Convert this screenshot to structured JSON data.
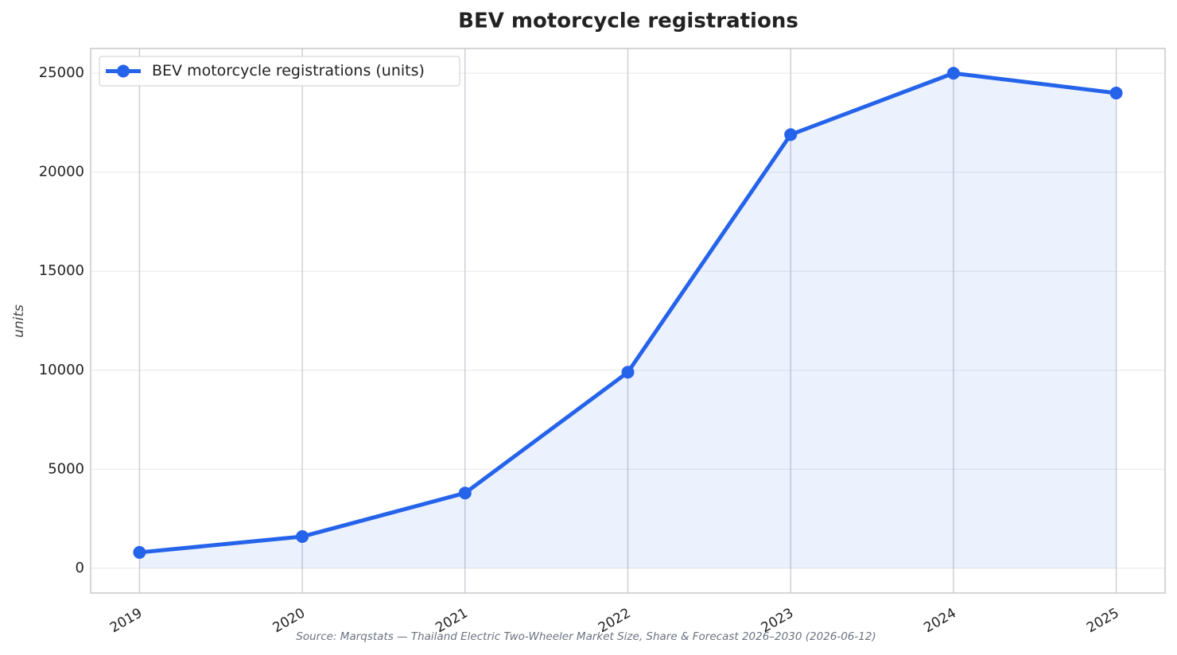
{
  "chart_data": {
    "type": "line",
    "title": "BEV motorcycle registrations",
    "y_label": "units",
    "source": "Source: Marqstats — Thailand Electric Two-Wheeler Market Size, Share & Forecast 2026–2030 (2026-06-12)",
    "x": [
      2019,
      2020,
      2021,
      2022,
      2023,
      2024,
      2025
    ],
    "series": [
      {
        "name": "BEV motorcycle registrations (units)",
        "color": "#2563eb",
        "values": [
          800,
          1600,
          3800,
          9900,
          21900,
          25000,
          24000
        ]
      }
    ],
    "xlim": [
      2018.7,
      2025.3
    ],
    "xticks": [
      2019,
      2020,
      2021,
      2022,
      2023,
      2024,
      2025
    ],
    "ylim": [
      -1250,
      26250
    ],
    "yticks": [
      0,
      5000,
      10000,
      15000,
      20000,
      25000
    ],
    "grid": true,
    "area_fill": true,
    "legend": "upper-left"
  }
}
